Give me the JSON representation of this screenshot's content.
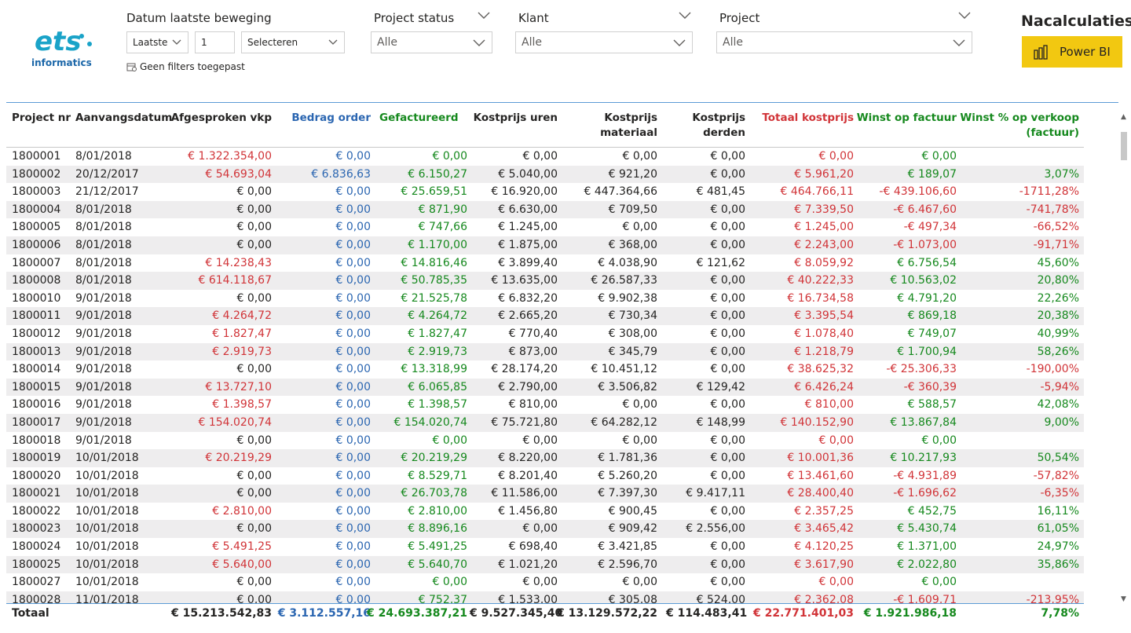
{
  "logo": {
    "brand": "ets",
    "sub": "informatics"
  },
  "filters": {
    "date": {
      "title": "Datum laatste beweging",
      "mode": "Laatste",
      "count": "1",
      "unit": "Selecteren",
      "no_filter": "Geen filters toegepast"
    },
    "status": {
      "title": "Project status",
      "value": "Alle"
    },
    "klant": {
      "title": "Klant",
      "value": "Alle"
    },
    "project": {
      "title": "Project",
      "value": "Alle"
    }
  },
  "header": {
    "title": "Nacalculaties",
    "powerbi_label": "Power BI"
  },
  "colors": {
    "red": "#d13438",
    "blue": "#2b66b1",
    "green": "#16891e",
    "accent": "#f2c811",
    "line": "#5b9bd5"
  },
  "table": {
    "columns": [
      {
        "label": "Project nr"
      },
      {
        "label": "Aanvangsdatum"
      },
      {
        "label": "Afgesproken vkp"
      },
      {
        "label": "Bedrag order"
      },
      {
        "label": "Gefactureerd"
      },
      {
        "label": "Kostprijs uren"
      },
      {
        "label": "Kostprijs materiaal"
      },
      {
        "label": "Kostprijs derden"
      },
      {
        "label": "Totaal kostprijs"
      },
      {
        "label": "Winst op factuur"
      },
      {
        "label": "Winst % op verkoop (factuur)"
      }
    ],
    "rows": [
      [
        "1800001",
        "8/01/2018",
        "€ 1.322.354,00",
        "€ 0,00",
        "€ 0,00",
        "€ 0,00",
        "€ 0,00",
        "€ 0,00",
        "€ 0,00",
        "€ 0,00",
        ""
      ],
      [
        "1800002",
        "20/12/2017",
        "€ 54.693,04",
        "€ 6.836,63",
        "€ 6.150,27",
        "€ 5.040,00",
        "€ 921,20",
        "€ 0,00",
        "€ 5.961,20",
        "€ 189,07",
        "3,07%"
      ],
      [
        "1800003",
        "21/12/2017",
        "€ 0,00",
        "€ 0,00",
        "€ 25.659,51",
        "€ 16.920,00",
        "€ 447.364,66",
        "€ 481,45",
        "€ 464.766,11",
        "-€ 439.106,60",
        "-1711,28%"
      ],
      [
        "1800004",
        "8/01/2018",
        "€ 0,00",
        "€ 0,00",
        "€ 871,90",
        "€ 6.630,00",
        "€ 709,50",
        "€ 0,00",
        "€ 7.339,50",
        "-€ 6.467,60",
        "-741,78%"
      ],
      [
        "1800005",
        "8/01/2018",
        "€ 0,00",
        "€ 0,00",
        "€ 747,66",
        "€ 1.245,00",
        "€ 0,00",
        "€ 0,00",
        "€ 1.245,00",
        "-€ 497,34",
        "-66,52%"
      ],
      [
        "1800006",
        "8/01/2018",
        "€ 0,00",
        "€ 0,00",
        "€ 1.170,00",
        "€ 1.875,00",
        "€ 368,00",
        "€ 0,00",
        "€ 2.243,00",
        "-€ 1.073,00",
        "-91,71%"
      ],
      [
        "1800007",
        "8/01/2018",
        "€ 14.238,43",
        "€ 0,00",
        "€ 14.816,46",
        "€ 3.899,40",
        "€ 4.038,90",
        "€ 121,62",
        "€ 8.059,92",
        "€ 6.756,54",
        "45,60%"
      ],
      [
        "1800008",
        "8/01/2018",
        "€ 614.118,67",
        "€ 0,00",
        "€ 50.785,35",
        "€ 13.635,00",
        "€ 26.587,33",
        "€ 0,00",
        "€ 40.222,33",
        "€ 10.563,02",
        "20,80%"
      ],
      [
        "1800010",
        "9/01/2018",
        "€ 0,00",
        "€ 0,00",
        "€ 21.525,78",
        "€ 6.832,20",
        "€ 9.902,38",
        "€ 0,00",
        "€ 16.734,58",
        "€ 4.791,20",
        "22,26%"
      ],
      [
        "1800011",
        "9/01/2018",
        "€ 4.264,72",
        "€ 0,00",
        "€ 4.264,72",
        "€ 2.665,20",
        "€ 730,34",
        "€ 0,00",
        "€ 3.395,54",
        "€ 869,18",
        "20,38%"
      ],
      [
        "1800012",
        "9/01/2018",
        "€ 1.827,47",
        "€ 0,00",
        "€ 1.827,47",
        "€ 770,40",
        "€ 308,00",
        "€ 0,00",
        "€ 1.078,40",
        "€ 749,07",
        "40,99%"
      ],
      [
        "1800013",
        "9/01/2018",
        "€ 2.919,73",
        "€ 0,00",
        "€ 2.919,73",
        "€ 873,00",
        "€ 345,79",
        "€ 0,00",
        "€ 1.218,79",
        "€ 1.700,94",
        "58,26%"
      ],
      [
        "1800014",
        "9/01/2018",
        "€ 0,00",
        "€ 0,00",
        "€ 13.318,99",
        "€ 28.174,20",
        "€ 10.451,12",
        "€ 0,00",
        "€ 38.625,32",
        "-€ 25.306,33",
        "-190,00%"
      ],
      [
        "1800015",
        "9/01/2018",
        "€ 13.727,10",
        "€ 0,00",
        "€ 6.065,85",
        "€ 2.790,00",
        "€ 3.506,82",
        "€ 129,42",
        "€ 6.426,24",
        "-€ 360,39",
        "-5,94%"
      ],
      [
        "1800016",
        "9/01/2018",
        "€ 1.398,57",
        "€ 0,00",
        "€ 1.398,57",
        "€ 810,00",
        "€ 0,00",
        "€ 0,00",
        "€ 810,00",
        "€ 588,57",
        "42,08%"
      ],
      [
        "1800017",
        "9/01/2018",
        "€ 154.020,74",
        "€ 0,00",
        "€ 154.020,74",
        "€ 75.721,80",
        "€ 64.282,12",
        "€ 148,99",
        "€ 140.152,90",
        "€ 13.867,84",
        "9,00%"
      ],
      [
        "1800018",
        "9/01/2018",
        "€ 0,00",
        "€ 0,00",
        "€ 0,00",
        "€ 0,00",
        "€ 0,00",
        "€ 0,00",
        "€ 0,00",
        "€ 0,00",
        ""
      ],
      [
        "1800019",
        "10/01/2018",
        "€ 20.219,29",
        "€ 0,00",
        "€ 20.219,29",
        "€ 8.220,00",
        "€ 1.781,36",
        "€ 0,00",
        "€ 10.001,36",
        "€ 10.217,93",
        "50,54%"
      ],
      [
        "1800020",
        "10/01/2018",
        "€ 0,00",
        "€ 0,00",
        "€ 8.529,71",
        "€ 8.201,40",
        "€ 5.260,20",
        "€ 0,00",
        "€ 13.461,60",
        "-€ 4.931,89",
        "-57,82%"
      ],
      [
        "1800021",
        "10/01/2018",
        "€ 0,00",
        "€ 0,00",
        "€ 26.703,78",
        "€ 11.586,00",
        "€ 7.397,30",
        "€ 9.417,11",
        "€ 28.400,40",
        "-€ 1.696,62",
        "-6,35%"
      ],
      [
        "1800022",
        "10/01/2018",
        "€ 2.810,00",
        "€ 0,00",
        "€ 2.810,00",
        "€ 1.456,80",
        "€ 900,45",
        "€ 0,00",
        "€ 2.357,25",
        "€ 452,75",
        "16,11%"
      ],
      [
        "1800023",
        "10/01/2018",
        "€ 0,00",
        "€ 0,00",
        "€ 8.896,16",
        "€ 0,00",
        "€ 909,42",
        "€ 2.556,00",
        "€ 3.465,42",
        "€ 5.430,74",
        "61,05%"
      ],
      [
        "1800024",
        "10/01/2018",
        "€ 5.491,25",
        "€ 0,00",
        "€ 5.491,25",
        "€ 698,40",
        "€ 3.421,85",
        "€ 0,00",
        "€ 4.120,25",
        "€ 1.371,00",
        "24,97%"
      ],
      [
        "1800025",
        "10/01/2018",
        "€ 5.640,00",
        "€ 0,00",
        "€ 5.640,70",
        "€ 1.021,20",
        "€ 2.596,70",
        "€ 0,00",
        "€ 3.617,90",
        "€ 2.022,80",
        "35,86%"
      ],
      [
        "1800027",
        "10/01/2018",
        "€ 0,00",
        "€ 0,00",
        "€ 0,00",
        "€ 0,00",
        "€ 0,00",
        "€ 0,00",
        "€ 0,00",
        "€ 0,00",
        ""
      ],
      [
        "1800028",
        "11/01/2018",
        "€ 0,00",
        "€ 0,00",
        "€ 752,37",
        "€ 1.533,00",
        "€ 305,08",
        "€ 524,00",
        "€ 2.362,08",
        "-€ 1.609,71",
        "-213,95%"
      ]
    ],
    "totals": [
      "Totaal",
      "",
      "€ 15.213.542,83",
      "€ 3.112.557,16",
      "€ 24.693.387,21",
      "€ 9.527.345,40",
      "€ 13.129.572,22",
      "€ 114.483,41",
      "€ 22.771.401,03",
      "€ 1.921.986,18",
      "7,78%"
    ]
  }
}
